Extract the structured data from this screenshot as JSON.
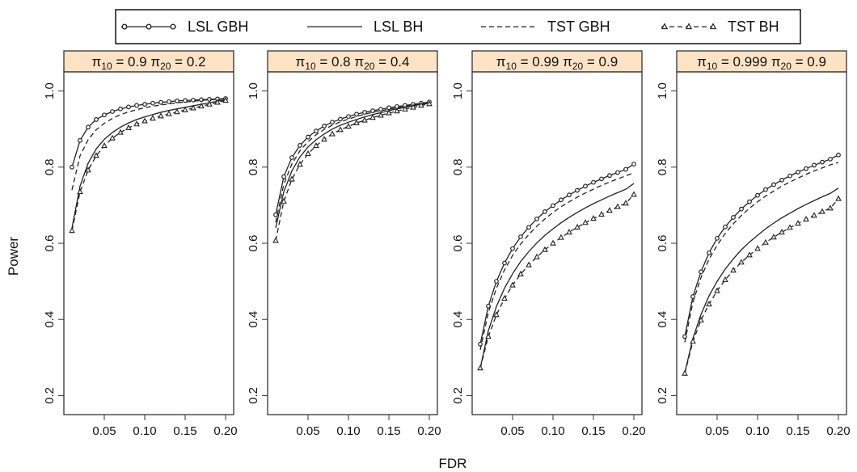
{
  "figure": {
    "ylabel": "Power",
    "xlabel": "FDR"
  },
  "legend": {
    "position": "top",
    "entries": [
      {
        "key": "lsl_gbh",
        "label": "LSL GBH",
        "line": "solid",
        "marker": "circle"
      },
      {
        "key": "lsl_bh",
        "label": "LSL BH",
        "line": "solid",
        "marker": "none"
      },
      {
        "key": "tst_gbh",
        "label": "TST GBH",
        "line": "dashed",
        "marker": "none"
      },
      {
        "key": "tst_bh",
        "label": "TST BH",
        "line": "dashed",
        "marker": "triangle"
      }
    ]
  },
  "colors": {
    "strip_fill": "#fde3c4",
    "line": "#222222",
    "frame": "#333333"
  },
  "chart_data": [
    {
      "type": "line",
      "strip": {
        "pi10": "0.9",
        "pi20": "0.2"
      },
      "xlim": [
        0.0,
        0.21
      ],
      "ylim": [
        0.15,
        1.05
      ],
      "xticks": [
        "0.05",
        "0.10",
        "0.15",
        "0.20"
      ],
      "yticks": [
        "0.2",
        "0.4",
        "0.6",
        "0.8",
        "1.0"
      ],
      "x": [
        0.01,
        0.02,
        0.03,
        0.04,
        0.05,
        0.06,
        0.07,
        0.08,
        0.09,
        0.1,
        0.11,
        0.12,
        0.13,
        0.14,
        0.15,
        0.16,
        0.17,
        0.18,
        0.19,
        0.2
      ],
      "series": [
        {
          "key": "lsl_gbh",
          "name": "LSL GBH",
          "values": [
            0.8,
            0.87,
            0.905,
            0.925,
            0.937,
            0.946,
            0.953,
            0.958,
            0.962,
            0.965,
            0.968,
            0.97,
            0.972,
            0.974,
            0.975,
            0.976,
            0.977,
            0.978,
            0.979,
            0.98
          ]
        },
        {
          "key": "lsl_bh",
          "name": "LSL BH",
          "values": [
            0.64,
            0.75,
            0.81,
            0.848,
            0.873,
            0.891,
            0.905,
            0.916,
            0.925,
            0.932,
            0.938,
            0.944,
            0.949,
            0.953,
            0.957,
            0.961,
            0.965,
            0.969,
            0.973,
            0.977
          ]
        },
        {
          "key": "tst_gbh",
          "name": "TST GBH",
          "values": [
            0.74,
            0.83,
            0.872,
            0.898,
            0.915,
            0.928,
            0.938,
            0.945,
            0.951,
            0.956,
            0.96,
            0.963,
            0.966,
            0.969,
            0.971,
            0.973,
            0.975,
            0.977,
            0.978,
            0.979
          ]
        },
        {
          "key": "tst_bh",
          "name": "TST BH",
          "values": [
            0.633,
            0.735,
            0.792,
            0.83,
            0.856,
            0.876,
            0.891,
            0.903,
            0.913,
            0.921,
            0.928,
            0.934,
            0.94,
            0.945,
            0.95,
            0.955,
            0.96,
            0.965,
            0.97,
            0.975
          ]
        }
      ]
    },
    {
      "type": "line",
      "strip": {
        "pi10": "0.8",
        "pi20": "0.4"
      },
      "xlim": [
        0.0,
        0.21
      ],
      "ylim": [
        0.15,
        1.05
      ],
      "xticks": [
        "0.05",
        "0.10",
        "0.15",
        "0.20"
      ],
      "yticks": [
        "0.2",
        "0.4",
        "0.6",
        "0.8",
        "1.0"
      ],
      "x": [
        0.01,
        0.02,
        0.03,
        0.04,
        0.05,
        0.06,
        0.07,
        0.08,
        0.09,
        0.1,
        0.11,
        0.12,
        0.13,
        0.14,
        0.15,
        0.16,
        0.17,
        0.18,
        0.19,
        0.2
      ],
      "series": [
        {
          "key": "lsl_gbh",
          "name": "LSL GBH",
          "values": [
            0.675,
            0.775,
            0.825,
            0.857,
            0.879,
            0.895,
            0.908,
            0.918,
            0.926,
            0.933,
            0.939,
            0.944,
            0.948,
            0.952,
            0.956,
            0.959,
            0.962,
            0.965,
            0.968,
            0.971
          ]
        },
        {
          "key": "lsl_bh",
          "name": "LSL BH",
          "values": [
            0.64,
            0.735,
            0.79,
            0.827,
            0.853,
            0.872,
            0.887,
            0.9,
            0.91,
            0.918,
            0.925,
            0.932,
            0.938,
            0.943,
            0.948,
            0.953,
            0.957,
            0.961,
            0.965,
            0.968
          ]
        },
        {
          "key": "tst_gbh",
          "name": "TST GBH",
          "values": [
            0.655,
            0.755,
            0.808,
            0.843,
            0.867,
            0.885,
            0.899,
            0.91,
            0.919,
            0.926,
            0.933,
            0.939,
            0.944,
            0.948,
            0.952,
            0.956,
            0.96,
            0.963,
            0.966,
            0.969
          ]
        },
        {
          "key": "tst_bh",
          "name": "TST BH",
          "values": [
            0.607,
            0.71,
            0.768,
            0.807,
            0.835,
            0.856,
            0.873,
            0.887,
            0.898,
            0.907,
            0.916,
            0.923,
            0.93,
            0.936,
            0.942,
            0.947,
            0.952,
            0.957,
            0.962,
            0.966
          ]
        }
      ]
    },
    {
      "type": "line",
      "strip": {
        "pi10": "0.99",
        "pi20": "0.9"
      },
      "xlim": [
        0.0,
        0.21
      ],
      "ylim": [
        0.15,
        1.05
      ],
      "xticks": [
        "0.05",
        "0.10",
        "0.15",
        "0.20"
      ],
      "yticks": [
        "0.2",
        "0.4",
        "0.6",
        "0.8",
        "1.0"
      ],
      "x": [
        0.01,
        0.02,
        0.03,
        0.04,
        0.05,
        0.06,
        0.07,
        0.08,
        0.09,
        0.1,
        0.11,
        0.12,
        0.13,
        0.14,
        0.15,
        0.16,
        0.17,
        0.18,
        0.19,
        0.2
      ],
      "series": [
        {
          "key": "lsl_gbh",
          "name": "LSL GBH",
          "values": [
            0.335,
            0.435,
            0.5,
            0.548,
            0.586,
            0.617,
            0.642,
            0.664,
            0.683,
            0.699,
            0.714,
            0.727,
            0.739,
            0.75,
            0.76,
            0.769,
            0.778,
            0.786,
            0.794,
            0.808
          ]
        },
        {
          "key": "lsl_bh",
          "name": "LSL BH",
          "values": [
            0.272,
            0.37,
            0.434,
            0.482,
            0.52,
            0.552,
            0.578,
            0.601,
            0.621,
            0.638,
            0.654,
            0.668,
            0.681,
            0.693,
            0.704,
            0.714,
            0.724,
            0.733,
            0.742,
            0.757
          ]
        },
        {
          "key": "tst_gbh",
          "name": "TST GBH",
          "values": [
            0.32,
            0.418,
            0.482,
            0.53,
            0.568,
            0.598,
            0.623,
            0.645,
            0.664,
            0.681,
            0.696,
            0.709,
            0.721,
            0.732,
            0.742,
            0.752,
            0.761,
            0.769,
            0.777,
            0.785
          ]
        },
        {
          "key": "tst_bh",
          "name": "TST BH",
          "values": [
            0.272,
            0.355,
            0.412,
            0.455,
            0.49,
            0.519,
            0.543,
            0.564,
            0.583,
            0.6,
            0.615,
            0.629,
            0.642,
            0.654,
            0.665,
            0.676,
            0.686,
            0.696,
            0.705,
            0.728
          ]
        }
      ]
    },
    {
      "type": "line",
      "strip": {
        "pi10": "0.999",
        "pi20": "0.9"
      },
      "xlim": [
        0.0,
        0.21
      ],
      "ylim": [
        0.15,
        1.05
      ],
      "xticks": [
        "0.05",
        "0.10",
        "0.15",
        "0.20"
      ],
      "yticks": [
        "0.2",
        "0.4",
        "0.6",
        "0.8",
        "1.0"
      ],
      "x": [
        0.01,
        0.02,
        0.03,
        0.04,
        0.05,
        0.06,
        0.07,
        0.08,
        0.09,
        0.1,
        0.11,
        0.12,
        0.13,
        0.14,
        0.15,
        0.16,
        0.17,
        0.18,
        0.19,
        0.2
      ],
      "series": [
        {
          "key": "lsl_gbh",
          "name": "LSL GBH",
          "values": [
            0.355,
            0.46,
            0.525,
            0.575,
            0.613,
            0.643,
            0.668,
            0.69,
            0.709,
            0.726,
            0.741,
            0.754,
            0.766,
            0.777,
            0.787,
            0.796,
            0.805,
            0.813,
            0.821,
            0.832
          ]
        },
        {
          "key": "lsl_bh",
          "name": "LSL BH",
          "values": [
            0.26,
            0.35,
            0.413,
            0.462,
            0.5,
            0.532,
            0.559,
            0.583,
            0.603,
            0.621,
            0.638,
            0.653,
            0.667,
            0.679,
            0.691,
            0.702,
            0.712,
            0.722,
            0.731,
            0.745
          ]
        },
        {
          "key": "tst_gbh",
          "name": "TST GBH",
          "values": [
            0.34,
            0.445,
            0.51,
            0.558,
            0.595,
            0.626,
            0.651,
            0.673,
            0.692,
            0.709,
            0.724,
            0.737,
            0.75,
            0.761,
            0.771,
            0.781,
            0.79,
            0.798,
            0.806,
            0.812
          ]
        },
        {
          "key": "tst_bh",
          "name": "TST BH",
          "values": [
            0.258,
            0.342,
            0.398,
            0.44,
            0.475,
            0.504,
            0.529,
            0.55,
            0.569,
            0.586,
            0.602,
            0.616,
            0.629,
            0.641,
            0.652,
            0.663,
            0.673,
            0.683,
            0.692,
            0.717
          ]
        }
      ]
    }
  ]
}
